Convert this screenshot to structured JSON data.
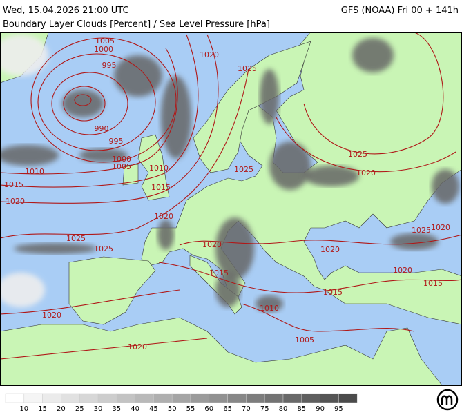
{
  "header": {
    "datetime": "Wed, 15.04.2026 21:00 UTC",
    "model": "GFS (NOAA) Fri 00 + 141h",
    "subtitle": "Boundary Layer Clouds [Percent] / Sea Level Pressure [hPa]"
  },
  "map": {
    "isobar_labels": [
      1005,
      1000,
      995,
      990,
      995,
      1000,
      1005,
      1010,
      1010,
      1015,
      1015,
      1020,
      1020,
      1025,
      1025,
      1025,
      1020,
      1020,
      1020,
      1020,
      1025,
      1025,
      1025,
      1020,
      1020,
      1015,
      1015,
      1015,
      1020,
      1010,
      1005,
      1020
    ]
  },
  "legend": {
    "colors": [
      "#ffffff",
      "#f5f5f5",
      "#ebebeb",
      "#e1e1e1",
      "#d7d7d7",
      "#cdcdcd",
      "#c3c3c3",
      "#b9b9b9",
      "#afafaf",
      "#a5a5a5",
      "#9b9b9b",
      "#919191",
      "#878787",
      "#7d7d7d",
      "#737373",
      "#696969",
      "#5f5f5f",
      "#555555",
      "#4b4b4b"
    ],
    "labels": [
      10,
      15,
      20,
      25,
      30,
      35,
      40,
      45,
      50,
      55,
      60,
      65,
      70,
      75,
      80,
      85,
      90,
      95
    ]
  }
}
